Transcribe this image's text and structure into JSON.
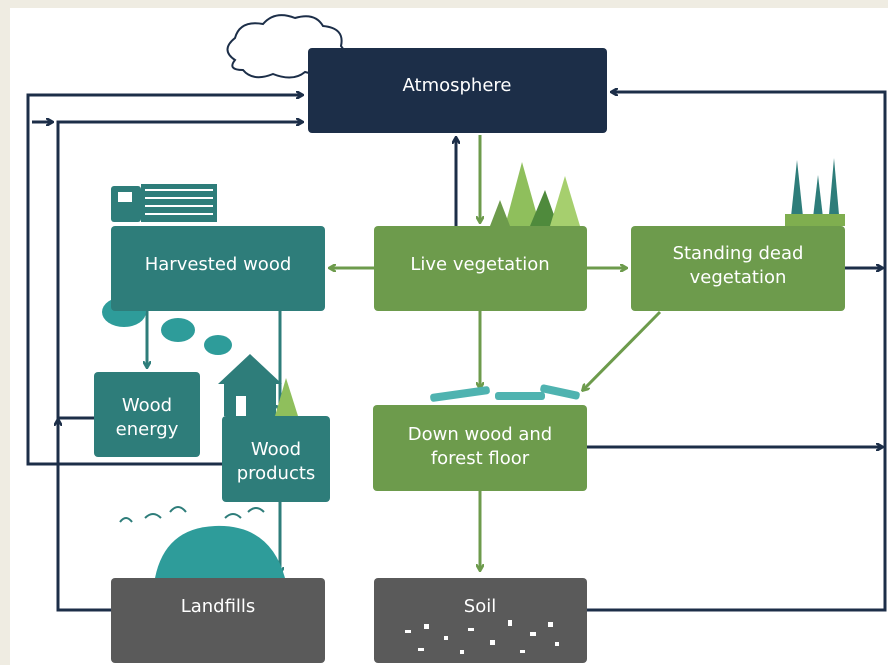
{
  "nodes": [
    {
      "lines": [
        "Atmosphere"
      ]
    },
    {
      "lines": [
        "Harvested wood"
      ]
    },
    {
      "lines": [
        "Live vegetation"
      ]
    },
    {
      "lines": [
        "Standing dead",
        "vegetation"
      ]
    },
    {
      "lines": [
        "Wood",
        "energy"
      ]
    },
    {
      "lines": [
        "Wood",
        "products"
      ]
    },
    {
      "lines": [
        "Down wood and",
        "forest floor"
      ]
    },
    {
      "lines": [
        "Landfills"
      ]
    },
    {
      "lines": [
        "Soil"
      ]
    }
  ]
}
